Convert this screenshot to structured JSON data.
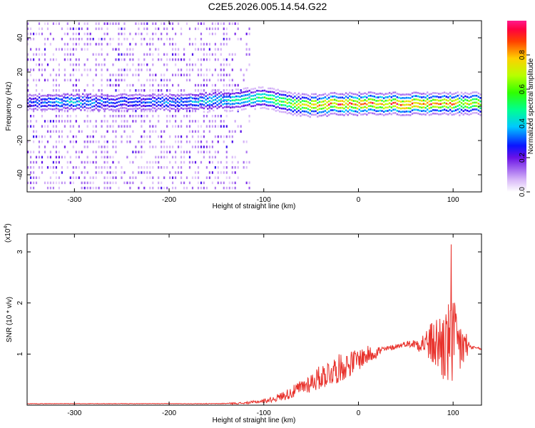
{
  "title": "C2E5.2026.005.14.54.G22",
  "chart_data": [
    {
      "type": "heatmap",
      "xlabel": "Height of straight line (km)",
      "ylabel": "Frequency (Hz)",
      "xlim": [
        -350,
        130
      ],
      "ylim": [
        -50,
        50
      ],
      "xticks": [
        -300,
        -200,
        -100,
        0,
        100
      ],
      "yticks": [
        -40,
        -20,
        0,
        20,
        40
      ],
      "colorbar": {
        "label": "Normalized spectral amplitude",
        "range": [
          0.0,
          1.0
        ],
        "ticks": [
          0.0,
          0.2,
          0.4,
          0.6,
          0.8
        ]
      },
      "ridge": {
        "x": [
          -350,
          -300,
          -250,
          -200,
          -150,
          -120,
          -100,
          -80,
          -60,
          -40,
          -20,
          0,
          20,
          40,
          60,
          80,
          100,
          110,
          130
        ],
        "freq": [
          2,
          2,
          2,
          2,
          3,
          4,
          4,
          2,
          0,
          0,
          1,
          1,
          1,
          1,
          1,
          1,
          1,
          1,
          1
        ],
        "amplitude": [
          0.3,
          0.4,
          0.3,
          0.35,
          0.45,
          0.5,
          0.55,
          0.65,
          0.75,
          0.85,
          0.9,
          0.9,
          0.9,
          0.9,
          0.9,
          0.85,
          0.8,
          0.75,
          0.75
        ]
      }
    },
    {
      "type": "line",
      "xlabel": "Height of straight line (km)",
      "ylabel": "SNR (10 * v/v)",
      "yscale_label": "(x10",
      "yscale_exp": "4",
      "yscale_close": ")",
      "xlim": [
        -350,
        130
      ],
      "ylim": [
        0,
        3.35
      ],
      "xticks": [
        -300,
        -200,
        -100,
        0,
        100
      ],
      "yticks": [
        1,
        2,
        3
      ],
      "color": "#e8302a",
      "series": [
        {
          "x": [
            -350,
            -300,
            -250,
            -200,
            -150,
            -120,
            -100,
            -90,
            -80,
            -70,
            -60,
            -50,
            -40,
            -30,
            -20,
            -10,
            0,
            10,
            20,
            30,
            40,
            50,
            60,
            70,
            80,
            90,
            100,
            110,
            120,
            130
          ],
          "values": [
            0.03,
            0.03,
            0.03,
            0.03,
            0.03,
            0.04,
            0.08,
            0.12,
            0.18,
            0.25,
            0.35,
            0.45,
            0.55,
            0.65,
            0.72,
            0.8,
            0.9,
            0.98,
            1.05,
            1.1,
            1.15,
            1.2,
            1.2,
            1.22,
            1.2,
            1.18,
            1.17,
            1.15,
            1.13,
            1.1
          ],
          "noise": [
            0.005,
            0.005,
            0.005,
            0.005,
            0.006,
            0.02,
            0.04,
            0.06,
            0.09,
            0.12,
            0.16,
            0.2,
            0.24,
            0.28,
            0.28,
            0.25,
            0.22,
            0.18,
            0.12,
            0.06,
            0.05,
            0.05,
            0.1,
            0.25,
            0.5,
            0.8,
            0.9,
            0.5,
            0.03,
            0.02
          ]
        }
      ]
    }
  ]
}
